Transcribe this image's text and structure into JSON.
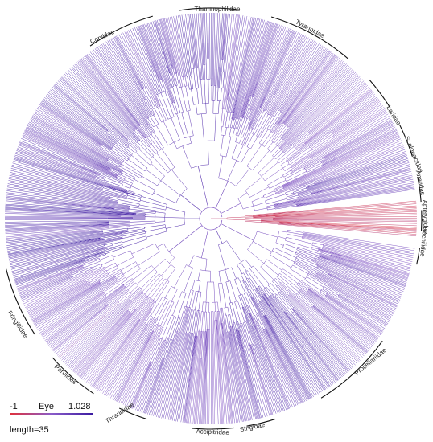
{
  "figure": {
    "type": "circular-phylogeny",
    "branch_color_scale": {
      "low_color": "#e0303a",
      "high_color": "#3a1aa0",
      "mid_color": "#8a5cc9"
    }
  },
  "clades": [
    {
      "name": "Thamnophilidae"
    },
    {
      "name": "Tyrannidae"
    },
    {
      "name": "Corvidae"
    },
    {
      "name": "Laridae"
    },
    {
      "name": "Scolopacidae"
    },
    {
      "name": "Anatidae"
    },
    {
      "name": "Apterygidae"
    },
    {
      "name": "Trochilidae"
    },
    {
      "name": "Procellariidae"
    },
    {
      "name": "Strigidae"
    },
    {
      "name": "Accipitridae"
    },
    {
      "name": "Thraupidae"
    },
    {
      "name": "Parulidae"
    },
    {
      "name": "Fringillidae"
    }
  ],
  "legend": {
    "min_label": "-1",
    "title": "Eye",
    "max_label": "1.028",
    "scale_label": "length=35"
  }
}
